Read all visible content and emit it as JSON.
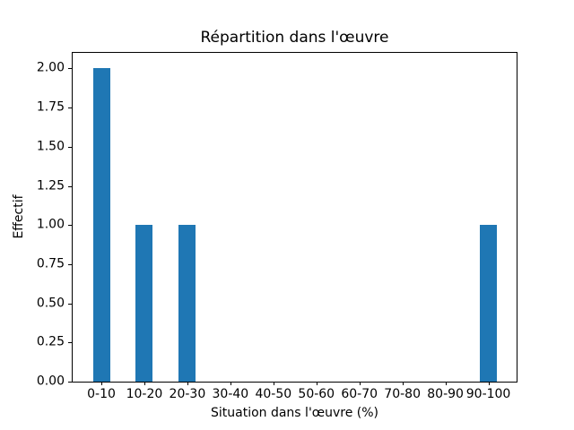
{
  "chart_data": {
    "type": "bar",
    "title": "Répartition dans l'œuvre",
    "xlabel": "Situation dans l'œuvre (%)",
    "ylabel": "Effectif",
    "categories": [
      "0-10",
      "10-20",
      "20-30",
      "30-40",
      "40-50",
      "50-60",
      "60-70",
      "70-80",
      "80-90",
      "90-100"
    ],
    "values": [
      2,
      1,
      1,
      0,
      0,
      0,
      0,
      0,
      0,
      1
    ],
    "ytick_labels": [
      "0.00",
      "0.25",
      "0.50",
      "0.75",
      "1.00",
      "1.25",
      "1.50",
      "1.75",
      "2.00"
    ],
    "ylim": [
      0,
      2.1
    ],
    "bar_color": "#1f77b4",
    "grid": false,
    "legend_position": "none"
  }
}
